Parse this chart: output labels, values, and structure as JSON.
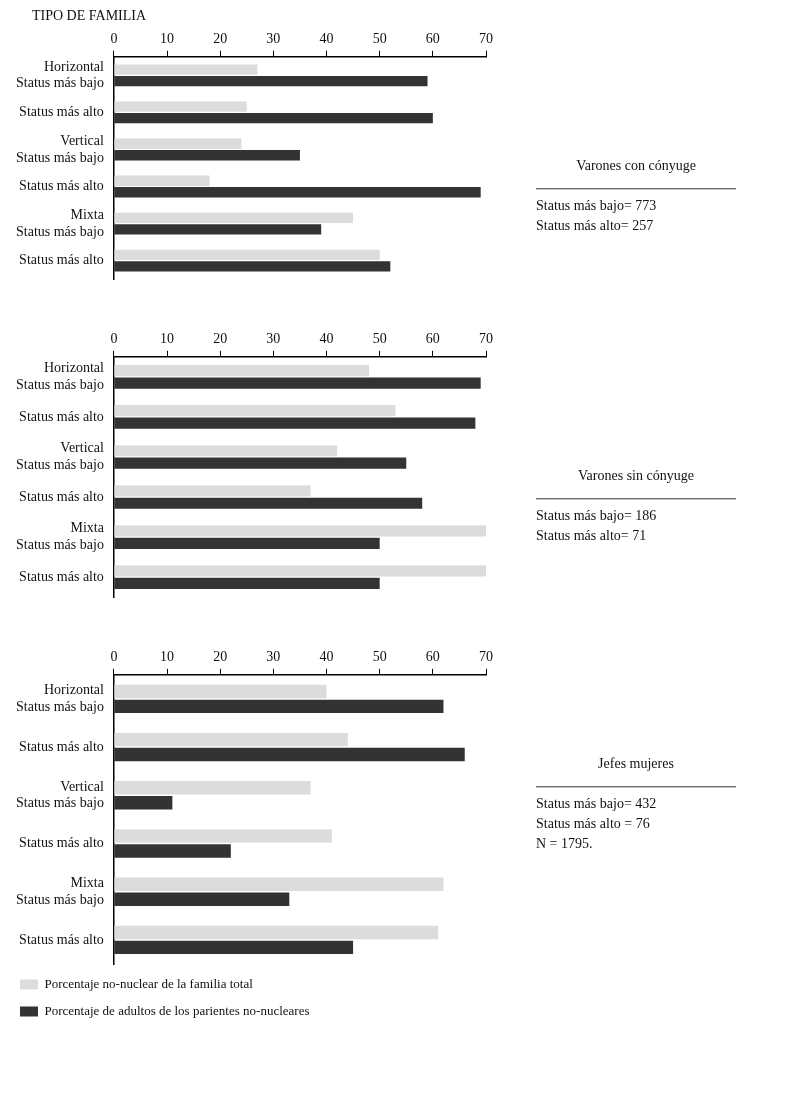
{
  "chart_data": [
    {
      "type": "bar",
      "orientation": "horizontal",
      "ylabel": "TIPO DE FAMILIA",
      "categories": [
        "Horizontal\nStatus más bajo",
        "Status más alto",
        "Vertical\nStatus más bajo",
        "Status más alto",
        "Mixta\nStatus más bajo",
        "Status más alto"
      ],
      "series": [
        {
          "color": "#dcdcdc",
          "values": [
            27,
            25,
            24,
            18,
            45,
            50
          ]
        },
        {
          "color": "#333333",
          "values": [
            59,
            60,
            35,
            69,
            39,
            52
          ]
        }
      ],
      "xlim": [
        0,
        70
      ],
      "xticks": [
        0,
        10,
        20,
        30,
        40,
        50,
        60,
        70
      ],
      "grid": false,
      "legend": false,
      "annotations": [
        "Varones con cónyuge",
        "Status más bajo= 773",
        "Status más alto= 257"
      ]
    },
    {
      "type": "bar",
      "orientation": "horizontal",
      "categories": [
        "Horizontal\nStatus más bajo",
        "Status más alto",
        "Vertical\nStatus más bajo",
        "Status más alto",
        "Mixta\nStatus más bajo",
        "Status más alto"
      ],
      "series": [
        {
          "color": "#dcdcdc",
          "values": [
            48,
            53,
            42,
            37,
            70,
            70
          ]
        },
        {
          "color": "#333333",
          "values": [
            69,
            68,
            55,
            58,
            50,
            50
          ]
        }
      ],
      "xlim": [
        0,
        70
      ],
      "xticks": [
        0,
        10,
        20,
        30,
        40,
        50,
        60,
        70
      ],
      "grid": false,
      "legend": false,
      "annotations": [
        "Varones sin cónyuge",
        "Status más bajo= 186",
        "Status más alto= 71"
      ]
    },
    {
      "type": "bar",
      "orientation": "horizontal",
      "categories": [
        "Horizontal\nStatus más bajo",
        "Status más alto",
        "Vertical\nStatus más bajo",
        "Status más alto",
        "Mixta\nStatus más bajo",
        "Status más alto"
      ],
      "series": [
        {
          "name": "Porcentaje no-nuclear de la familia total",
          "color": "#dcdcdc",
          "values": [
            40,
            44,
            37,
            41,
            62,
            61
          ]
        },
        {
          "name": "Porcentaje de adultos de los parientes no-nucleares",
          "color": "#333333",
          "values": [
            62,
            66,
            11,
            22,
            33,
            45
          ]
        }
      ],
      "xlim": [
        0,
        70
      ],
      "xticks": [
        0,
        10,
        20,
        30,
        40,
        50,
        60,
        70
      ],
      "grid": false,
      "legend": "bottom",
      "annotations": [
        "Jefes mujeres",
        "Status más bajo= 432",
        "Status más alto = 76",
        "N = 1795."
      ]
    }
  ]
}
